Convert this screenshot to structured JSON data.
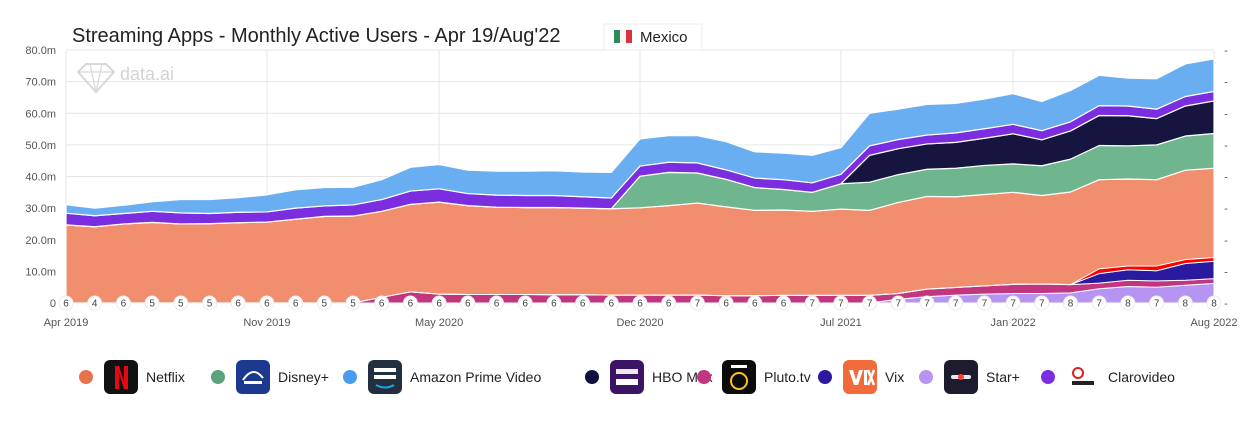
{
  "header": {
    "title": "Streaming Apps -  Monthly Active Users - Apr 19/Aug'22",
    "region": "Mexico",
    "watermark": "data.ai"
  },
  "chart_data": {
    "type": "area",
    "stacked": true,
    "x": [
      "2019-04",
      "2019-05",
      "2019-06",
      "2019-07",
      "2019-08",
      "2019-09",
      "2019-10",
      "2019-11",
      "2019-12",
      "2020-01",
      "2020-02",
      "2020-03",
      "2020-04",
      "2020-05",
      "2020-06",
      "2020-07",
      "2020-08",
      "2020-09",
      "2020-10",
      "2020-11",
      "2020-12",
      "2021-01",
      "2021-02",
      "2021-03",
      "2021-04",
      "2021-05",
      "2021-06",
      "2021-07",
      "2021-08",
      "2021-09",
      "2021-10",
      "2021-11",
      "2021-12",
      "2022-01",
      "2022-02",
      "2022-03",
      "2022-04",
      "2022-05",
      "2022-06",
      "2022-07",
      "2022-08"
    ],
    "x_tick_labels": [
      "Apr 2019",
      "Nov 2019",
      "May 2020",
      "Dec 2020",
      "Jul 2021",
      "Jan 2022",
      "Aug 2022"
    ],
    "x_tick_indices": [
      0,
      7,
      13,
      20,
      27,
      33,
      40
    ],
    "ylim": [
      0,
      80
    ],
    "y_ticks": [
      "0",
      "10.0m",
      "20.0m",
      "30.0m",
      "40.0m",
      "50.0m",
      "60.0m",
      "70.0m",
      "80.0m"
    ],
    "grid": true,
    "legend_position": "bottom",
    "series": [
      {
        "name": "Star+",
        "color": "#b695f2",
        "values": [
          0,
          0,
          0,
          0,
          0,
          0,
          0,
          0,
          0,
          0,
          0,
          0,
          0,
          0,
          0,
          0,
          0,
          0,
          0,
          0,
          0,
          0,
          0,
          0,
          0,
          0,
          0,
          0,
          0,
          1.2,
          2.0,
          2.5,
          2.8,
          3.0,
          3.0,
          3.2,
          4.5,
          5.2,
          5.0,
          5.6,
          6.2
        ]
      },
      {
        "name": "Pluto.tv",
        "color": "#c2367f",
        "values": [
          0,
          0,
          0,
          0,
          0,
          0,
          0,
          0,
          0,
          0,
          0,
          1.8,
          3.5,
          2.8,
          2.7,
          2.7,
          2.7,
          2.6,
          2.6,
          2.5,
          2.5,
          2.5,
          2.5,
          2.3,
          2.3,
          2.4,
          2.4,
          2.4,
          2.4,
          1.8,
          2.4,
          2.4,
          2.6,
          2.9,
          3.0,
          2.6,
          1.8,
          2.0,
          2.0,
          1.6,
          1.5
        ]
      },
      {
        "name": "Vix",
        "color": "#2a1aa0",
        "values": [
          0,
          0,
          0,
          0,
          0,
          0,
          0,
          0,
          0,
          0,
          0,
          0,
          0,
          0,
          0,
          0,
          0,
          0,
          0,
          0,
          0,
          0,
          0,
          0,
          0,
          0,
          0,
          0,
          0,
          0,
          0,
          0,
          0,
          0,
          0,
          0,
          3.0,
          3.3,
          3.2,
          5.3,
          5.5
        ]
      },
      {
        "name": "Clarovideo",
        "color": "#ff0000",
        "values": [
          0,
          0,
          0,
          0,
          0,
          0,
          0,
          0,
          0,
          0,
          0,
          0,
          0,
          0,
          0,
          0,
          0,
          0,
          0,
          0,
          0,
          0,
          0,
          0,
          0,
          0,
          0,
          0,
          0,
          0,
          0,
          0,
          0,
          0,
          0,
          0,
          1.5,
          1.2,
          1.5,
          1.2,
          1.2
        ]
      }
    ],
    "full_series": [
      {
        "name": "Netflix",
        "color": "#f08e6e",
        "values": [
          24.7,
          24.1,
          25,
          25.5,
          25,
          25.1,
          25.4,
          25.6,
          26.5,
          27.4,
          27.5,
          29,
          31.2,
          31.9,
          30.8,
          30.3,
          30.2,
          30.2,
          30,
          29.8,
          30.1,
          30.8,
          31.6,
          30.4,
          29.3,
          29.4,
          29,
          29.7,
          29.3,
          31.8,
          33.7,
          33.6,
          34.3,
          35,
          34,
          35.1,
          39,
          39.2,
          39,
          42,
          42.6
        ]
      },
      {
        "name": "Disney+",
        "color": "#6fb58e",
        "values": [
          0,
          0,
          0,
          0,
          0,
          0,
          0,
          0,
          0,
          0,
          0,
          0,
          0,
          0,
          0,
          0,
          0,
          0,
          0,
          0,
          10,
          10.5,
          9.5,
          8.7,
          7.2,
          6.5,
          6,
          8,
          8.9,
          8.8,
          8.6,
          9,
          9.2,
          9,
          9.4,
          10.4,
          10.8,
          10.5,
          11,
          10.8,
          11
        ]
      },
      {
        "name": "HBO Max",
        "color": "#16153f",
        "values": [
          0,
          0,
          0,
          0,
          0,
          0,
          0,
          0,
          0,
          0,
          0,
          0,
          0,
          0,
          0,
          0,
          0,
          0,
          0,
          0,
          0,
          0,
          0,
          0,
          0,
          0,
          0,
          0,
          8.5,
          8.2,
          8,
          8.2,
          8.6,
          9.5,
          8.2,
          8.9,
          9.5,
          9.5,
          8.3,
          9.5,
          10.3
        ]
      },
      {
        "name": "Clarovideo",
        "color": "#7a2ee0",
        "values": [
          3.7,
          3.5,
          3.3,
          3.5,
          3.5,
          3.2,
          3.3,
          3.2,
          3.5,
          3.3,
          3.5,
          3.7,
          4.2,
          4.2,
          3.8,
          3.8,
          3.8,
          3.8,
          3.6,
          3.4,
          3.2,
          3.2,
          3.2,
          3.0,
          3.0,
          3.1,
          3.0,
          3.0,
          3.0,
          2.9,
          2.8,
          3.0,
          3.0,
          3.0,
          2.9,
          2.9,
          3.1,
          3.1,
          3.0,
          3.0,
          3.0
        ]
      },
      {
        "name": "Amazon Prime Video",
        "color": "#6aaef2",
        "values": [
          2.7,
          2.4,
          2.6,
          3.0,
          4.2,
          4.4,
          4.6,
          5.4,
          5.8,
          5.8,
          5.6,
          6.3,
          7.5,
          7.7,
          7.4,
          7.6,
          7.7,
          7.8,
          7.8,
          8.1,
          8.6,
          8.4,
          8.6,
          8.9,
          8.3,
          8.4,
          8.7,
          8.4,
          10.3,
          9.6,
          9.7,
          9.3,
          9.4,
          9.7,
          9.2,
          9.9,
          9.6,
          8.8,
          9.6,
          10.3,
          10.3
        ]
      }
    ],
    "badges": [
      "6",
      "4",
      "6",
      "5",
      "5",
      "5",
      "6",
      "6",
      "6",
      "5",
      "5",
      "6",
      "6",
      "6",
      "6",
      "6",
      "6",
      "6",
      "6",
      "6",
      "6",
      "6",
      "7",
      "6",
      "6",
      "6",
      "7",
      "7",
      "7",
      "7",
      "7",
      "7",
      "7",
      "7",
      "7",
      "8",
      "7",
      "8",
      "7",
      "8",
      "8"
    ]
  },
  "legend": [
    {
      "label": "Netflix",
      "dot": "#e8734a",
      "icon": "netflix-icon"
    },
    {
      "label": "Disney+",
      "dot": "#5aa37d",
      "icon": "disney-plus-icon"
    },
    {
      "label": "Amazon Prime Video",
      "dot": "#4a9cf0",
      "icon": "prime-video-icon"
    },
    {
      "label": "HBO Max",
      "dot": "#101040",
      "icon": "hbo-max-icon"
    },
    {
      "label": "Pluto.tv",
      "dot": "#c2367f",
      "icon": "pluto-tv-icon"
    },
    {
      "label": "Vix",
      "dot": "#2a1aa0",
      "icon": "vix-icon"
    },
    {
      "label": "Star+",
      "dot": "#b695f2",
      "icon": "star-plus-icon"
    },
    {
      "label": "Clarovideo",
      "dot": "#7a2ee0",
      "icon": "clarovideo-icon"
    }
  ]
}
